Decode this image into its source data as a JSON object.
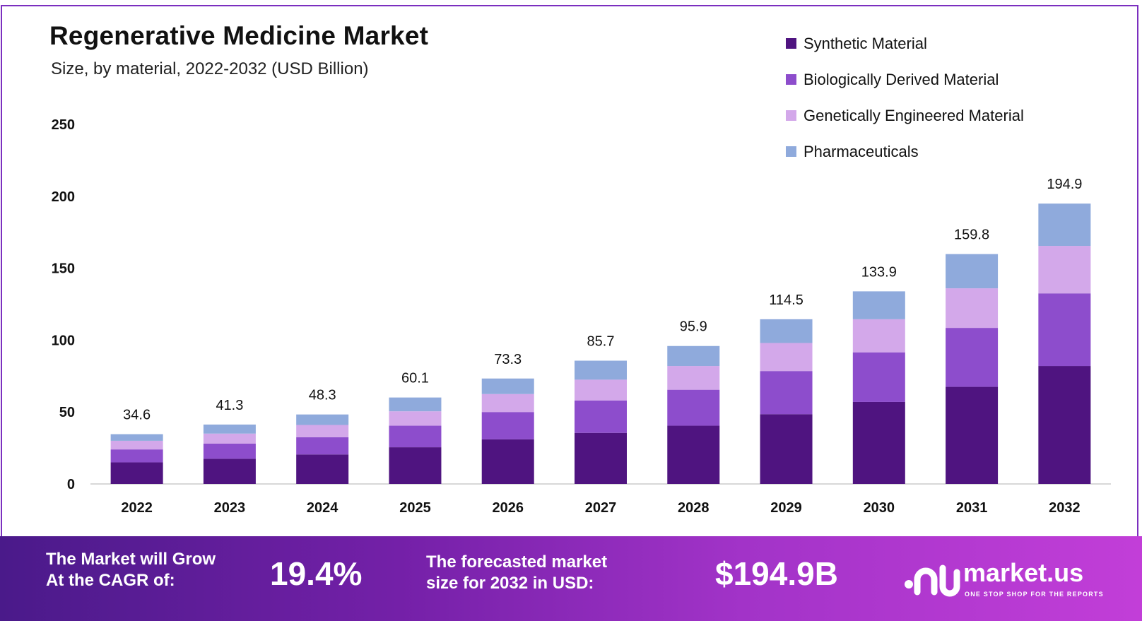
{
  "title": "Regenerative Medicine Market",
  "subtitle": "Size, by material, 2022-2032 (USD Billion)",
  "colors": {
    "synthetic": "#4f1480",
    "biological": "#8d4dcc",
    "genetic": "#d3a8ea",
    "pharma": "#8faadc",
    "axis": "#cccccc"
  },
  "chart_data": {
    "type": "bar",
    "stacked": true,
    "categories": [
      "2022",
      "2023",
      "2024",
      "2025",
      "2026",
      "2027",
      "2028",
      "2029",
      "2030",
      "2031",
      "2032"
    ],
    "ylim": [
      0,
      250
    ],
    "yticks": [
      0,
      50,
      100,
      150,
      200,
      250
    ],
    "legend_position": "top-right",
    "series": [
      {
        "name": "Synthetic Material",
        "values": [
          15,
          17.5,
          20.5,
          25.5,
          31,
          35.5,
          40.5,
          48.5,
          57,
          67.5,
          82
        ]
      },
      {
        "name": "Biologically Derived Material",
        "values": [
          9,
          10.5,
          12,
          15,
          19,
          22.5,
          25,
          30,
          34.5,
          41,
          50.5
        ]
      },
      {
        "name": "Genetically Engineered Material",
        "values": [
          6,
          7,
          8.5,
          10,
          12.5,
          14.5,
          16.5,
          19.5,
          23,
          27.5,
          33
        ]
      },
      {
        "name": "Pharmaceuticals",
        "values": [
          4.6,
          6.3,
          7.3,
          9.6,
          10.8,
          13.2,
          13.9,
          16.5,
          19.4,
          23.8,
          29.4
        ]
      }
    ],
    "totals": [
      "34.6",
      "41.3",
      "48.3",
      "60.1",
      "73.3",
      "85.7",
      "95.9",
      "114.5",
      "133.9",
      "159.8",
      "194.9"
    ]
  },
  "banner": {
    "cagr_label_line1": "The Market will Grow",
    "cagr_label_line2": "At the CAGR of:",
    "cagr_value": "19.4%",
    "forecast_label_line1": "The forecasted market",
    "forecast_label_line2": "size for 2032 in USD:",
    "forecast_value": "$194.9B",
    "logo_text": "market.us",
    "logo_tagline": "ONE STOP SHOP FOR THE REPORTS"
  }
}
